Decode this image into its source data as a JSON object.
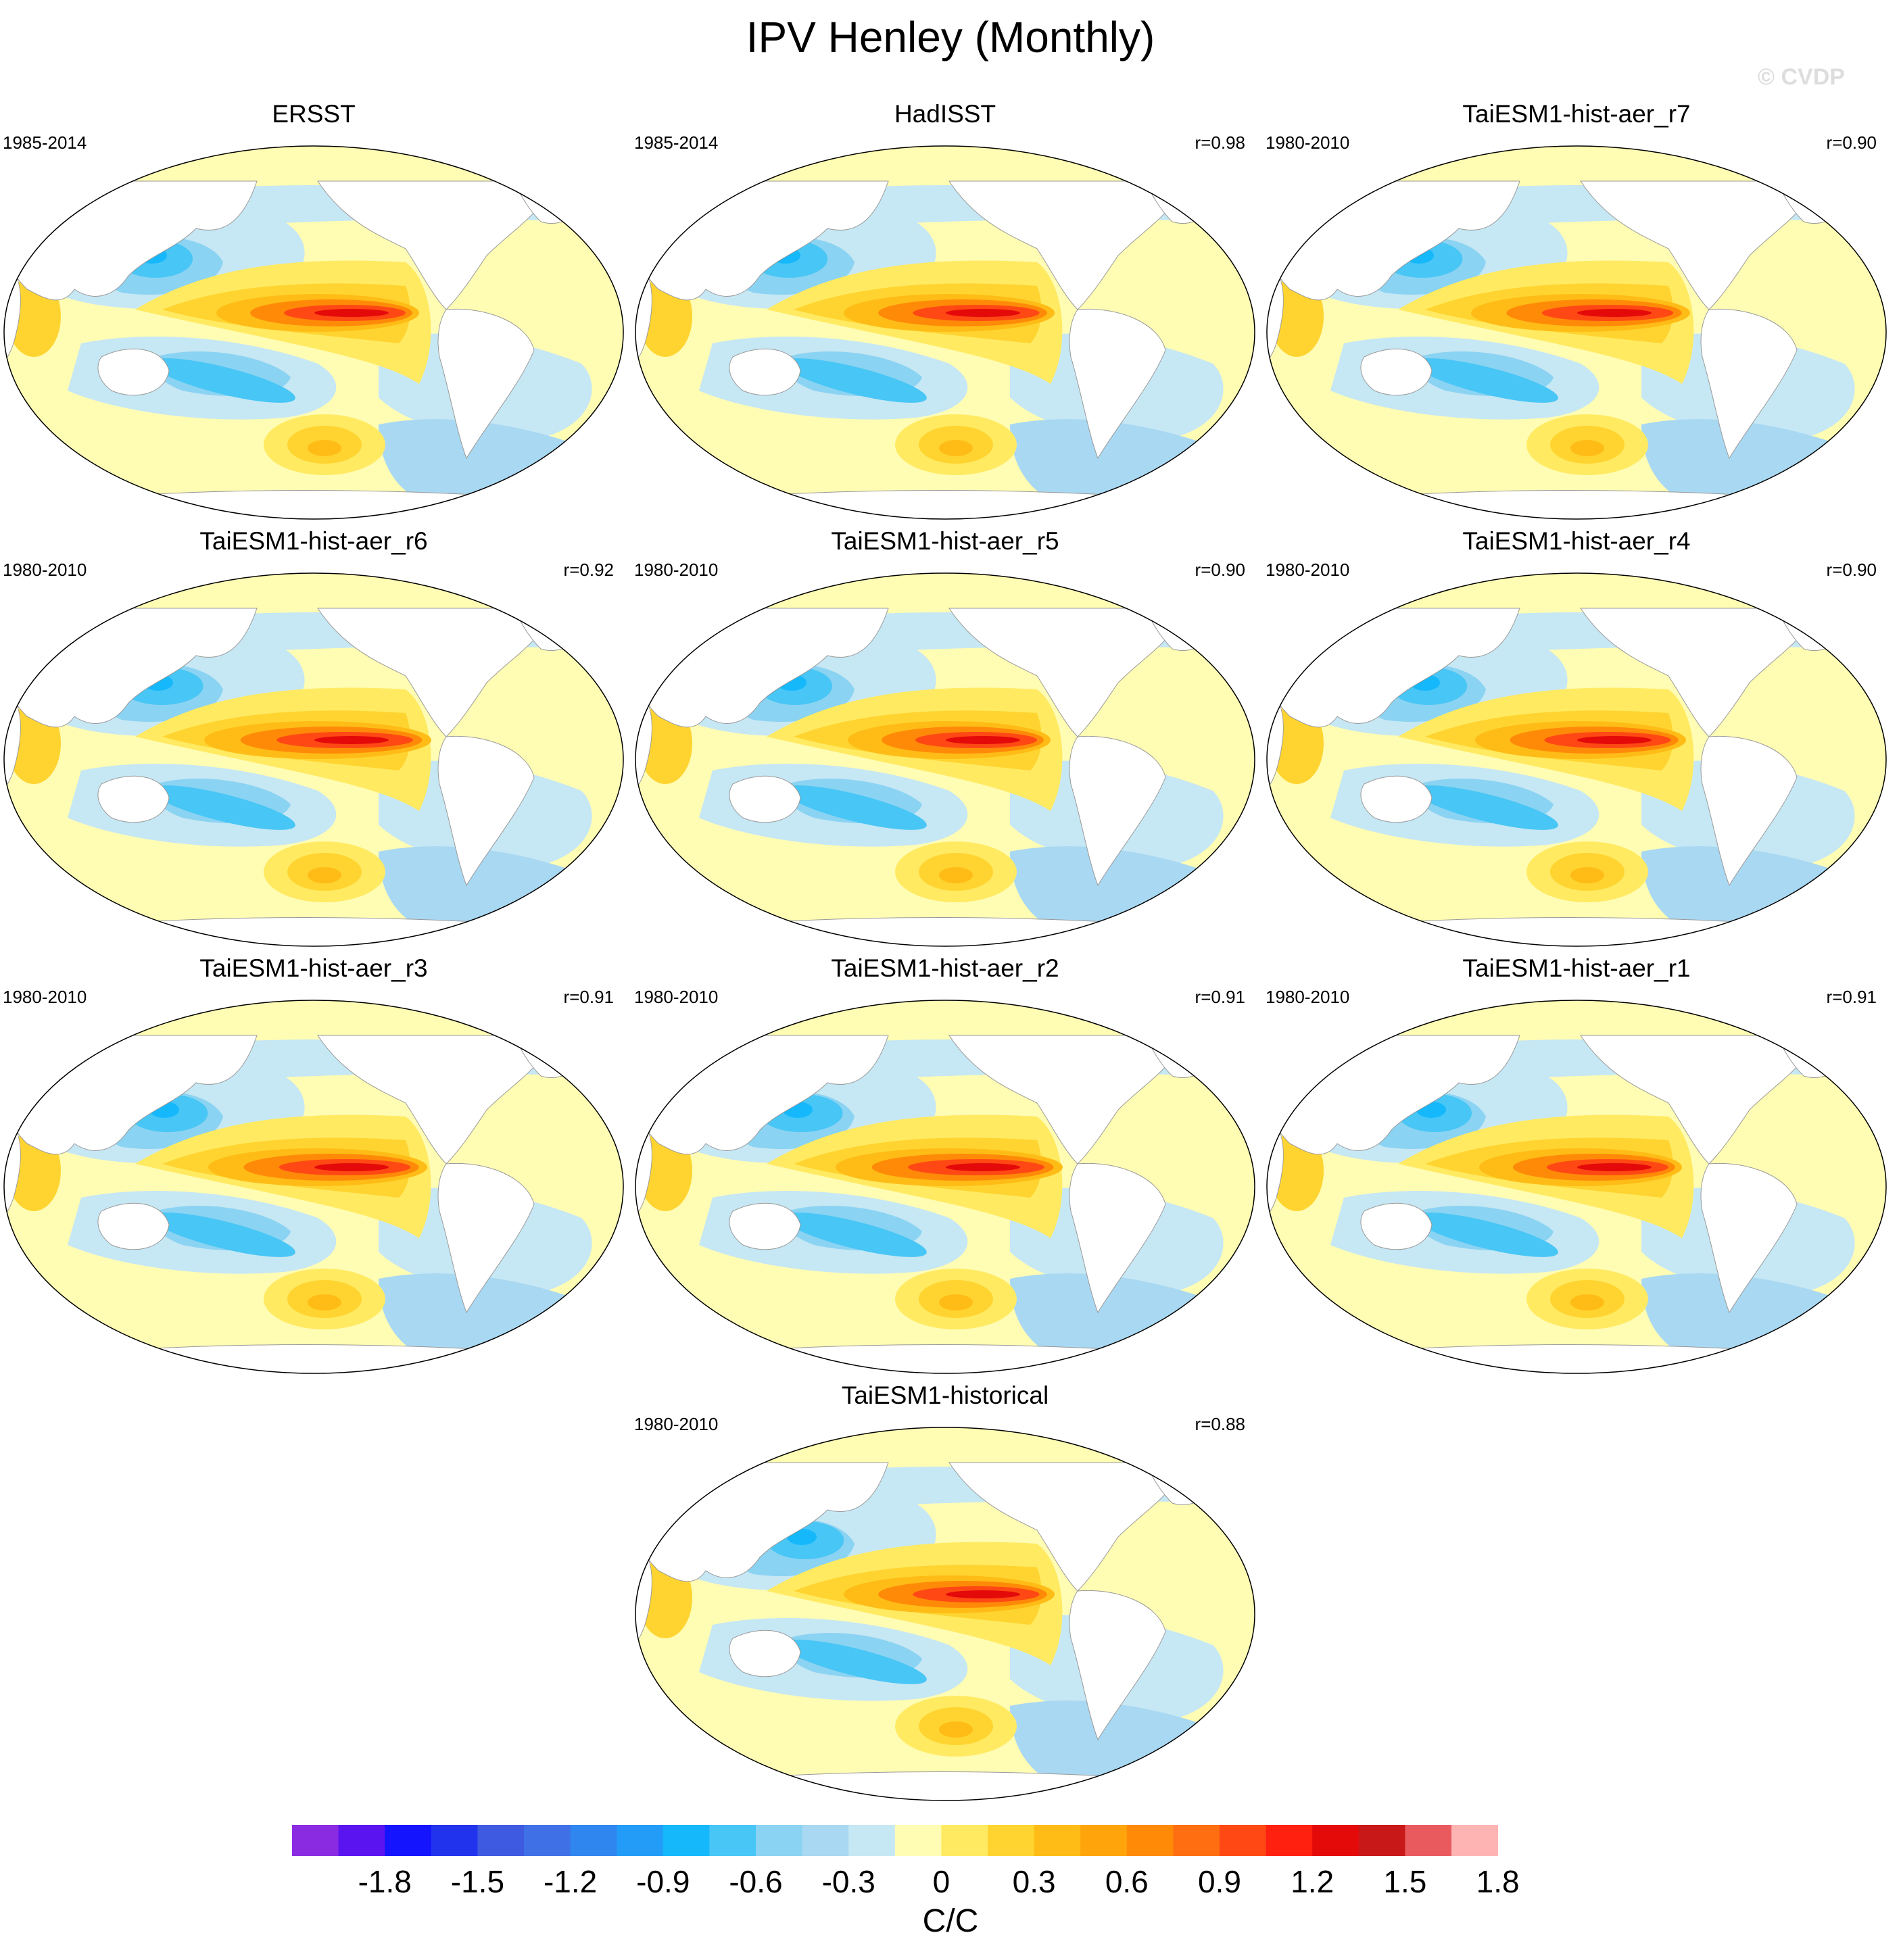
{
  "title": "IPV Henley (Monthly)",
  "watermark": "© CVDP",
  "panels": [
    {
      "title": "ERSST",
      "period": "1985-2014",
      "r": "",
      "variant": 0
    },
    {
      "title": "HadISST",
      "period": "1985-2014",
      "r": "r=0.98",
      "variant": 1
    },
    {
      "title": "TaiESM1-hist-aer_r7",
      "period": "1980-2010",
      "r": "r=0.90",
      "variant": 2
    },
    {
      "title": "TaiESM1-hist-aer_r6",
      "period": "1980-2010",
      "r": "r=0.92",
      "variant": 3
    },
    {
      "title": "TaiESM1-hist-aer_r5",
      "period": "1980-2010",
      "r": "r=0.90",
      "variant": 4
    },
    {
      "title": "TaiESM1-hist-aer_r4",
      "period": "1980-2010",
      "r": "r=0.90",
      "variant": 5
    },
    {
      "title": "TaiESM1-hist-aer_r3",
      "period": "1980-2010",
      "r": "r=0.91",
      "variant": 6
    },
    {
      "title": "TaiESM1-hist-aer_r2",
      "period": "1980-2010",
      "r": "r=0.91",
      "variant": 7
    },
    {
      "title": "TaiESM1-hist-aer_r1",
      "period": "1980-2010",
      "r": "r=0.91",
      "variant": 8
    },
    {
      "title": "TaiESM1-historical",
      "period": "1980-2010",
      "r": "r=0.88",
      "variant": 9
    }
  ],
  "colorbar": {
    "colors": [
      "#8a2be2",
      "#5a14f0",
      "#1414ff",
      "#2233ee",
      "#3e5ae0",
      "#3f70e6",
      "#2f86ee",
      "#239cf7",
      "#16b8fc",
      "#48c6f5",
      "#8bd3f2",
      "#a9d8f2",
      "#c6e7f4",
      "#fffcb4",
      "#ffea62",
      "#ffd430",
      "#ffbc16",
      "#ffa40a",
      "#ff8a08",
      "#ff6e10",
      "#ff4814",
      "#ff2010",
      "#e40a0a",
      "#c81818",
      "#e85a5e",
      "#ffb4b4"
    ],
    "labels": [
      "-1.8",
      "-1.5",
      "-1.2",
      "-0.9",
      "-0.6",
      "-0.3",
      "0",
      "0.3",
      "0.6",
      "0.9",
      "1.2",
      "1.5",
      "1.8"
    ],
    "units": "C/C"
  }
}
